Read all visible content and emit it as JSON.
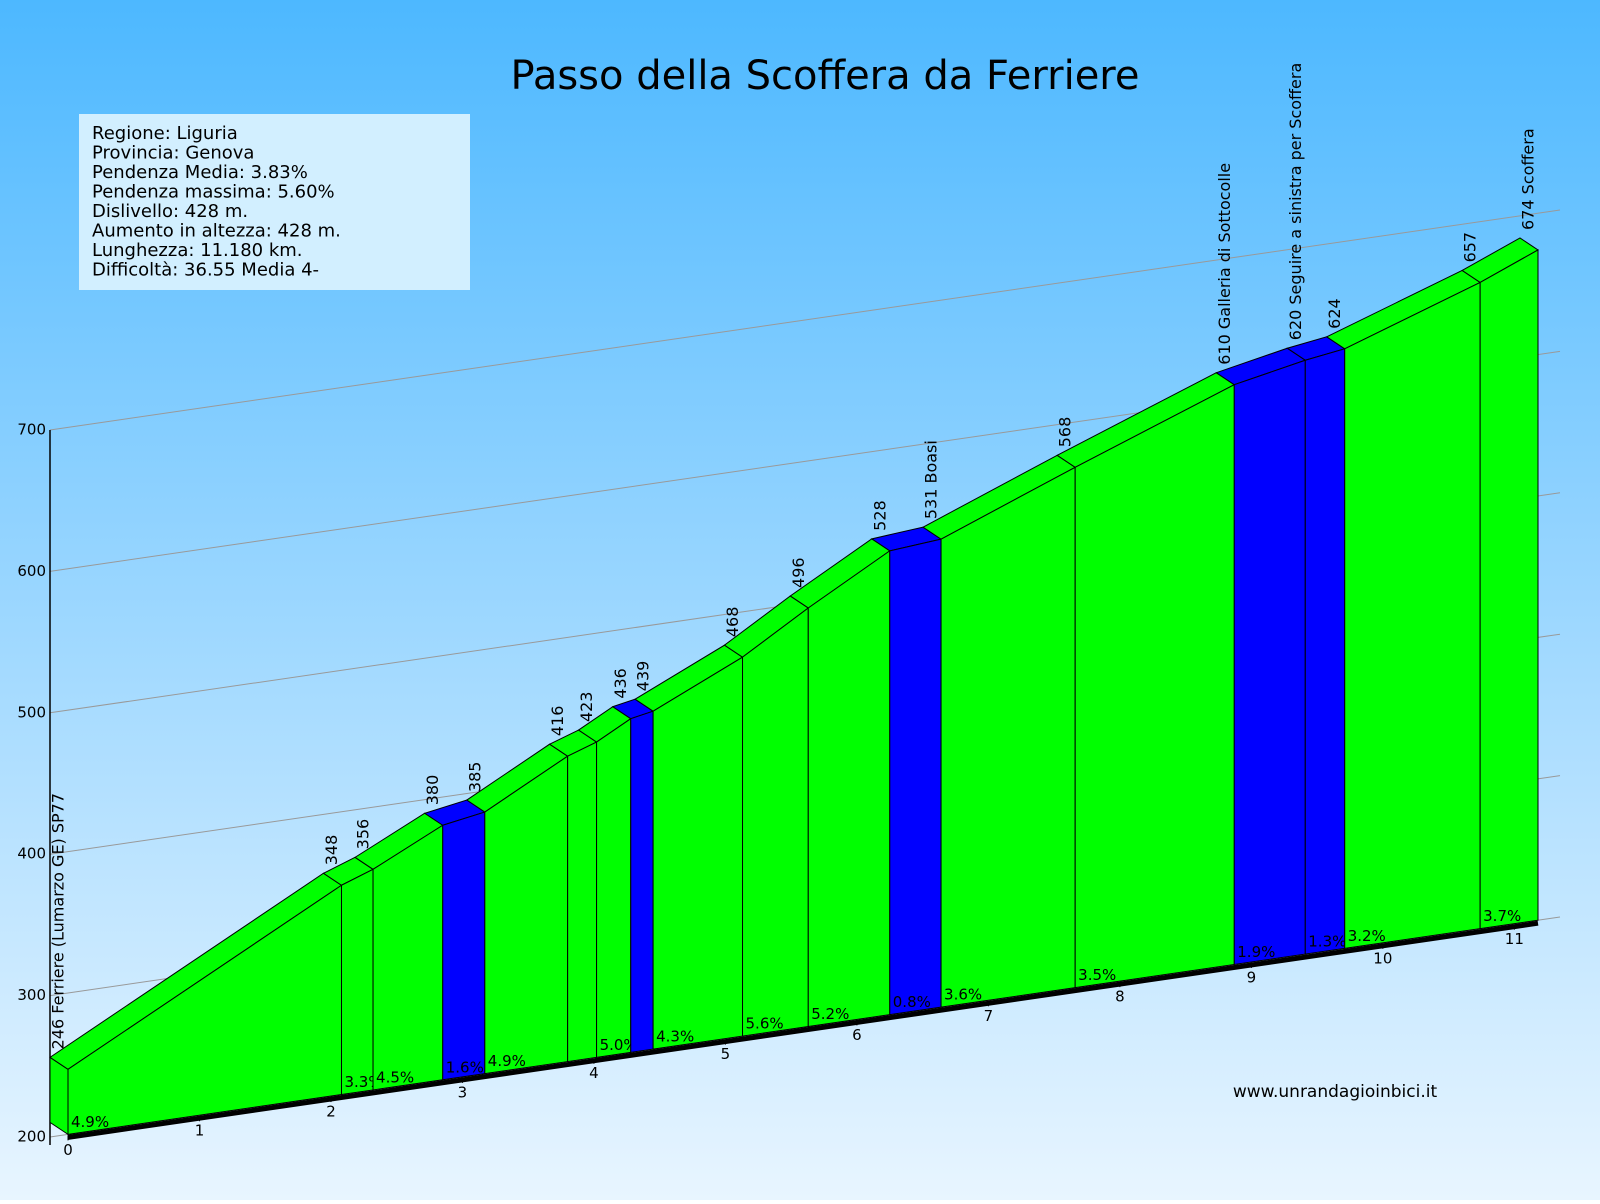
{
  "chart_data": {
    "type": "elevation_profile",
    "title": "Passo della Scoffera da Ferriere",
    "info": [
      "Regione: Liguria",
      "Provincia: Genova",
      "Pendenza Media: 3.83%",
      "Pendenza massima: 5.60%",
      "Dislivello:   428 m.",
      "Aumento in altezza:   428 m.",
      "Lunghezza:  11.180 km.",
      "Difficoltà: 36.55 Media 4-"
    ],
    "watermark": "www.unrandagioinbici.it",
    "km": [
      0,
      2.08,
      2.32,
      2.85,
      3.17,
      3.8,
      4.02,
      4.28,
      4.45,
      5.13,
      5.63,
      6.25,
      6.64,
      7.66,
      8.87,
      9.41,
      9.71,
      10.74,
      11.18
    ],
    "elevations": [
      246,
      348,
      356,
      380,
      385,
      416,
      423,
      436,
      439,
      468,
      496,
      528,
      531,
      568,
      610,
      620,
      624,
      657,
      674
    ],
    "point_labels": [
      "246 Ferriere (Lumarzo GE) SP77",
      "348",
      "356",
      "380",
      "385",
      "416",
      "423",
      "436",
      "439",
      "468",
      "496",
      "528",
      "531 Boasi",
      "568",
      "610 Galleria di Sottocolle",
      "620 Seguire a sinistra per Scoffera",
      "624",
      "657",
      "674 Scoffera"
    ],
    "grades": [
      4.9,
      3.3,
      4.5,
      1.6,
      4.9,
      null,
      5.0,
      null,
      4.3,
      5.6,
      5.2,
      0.8,
      3.6,
      3.5,
      1.9,
      1.3,
      3.2,
      3.7
    ],
    "grade_labels": [
      "4.9%",
      "3.3%",
      "4.5%",
      "1.6%",
      "4.9%",
      null,
      "5.0%",
      null,
      "4.3%",
      "5.6%",
      "5.2%",
      "0.8%",
      "3.6%",
      "3.5%",
      "1.9%",
      "1.3%",
      "3.2%",
      "3.7%"
    ],
    "segment_colors": [
      "#00ff00",
      "#00ff00",
      "#00ff00",
      "#0000ff",
      "#00ff00",
      "#00ff00",
      "#00ff00",
      "#0000ff",
      "#00ff00",
      "#00ff00",
      "#00ff00",
      "#0000ff",
      "#00ff00",
      "#00ff00",
      "#0000ff",
      "#0000ff",
      "#00ff00",
      "#00ff00"
    ],
    "xlim": [
      0,
      11.18
    ],
    "xticks": [
      0,
      1,
      2,
      3,
      4,
      5,
      6,
      7,
      8,
      9,
      10,
      11
    ],
    "ylim": [
      200,
      700
    ],
    "yticks": [
      200,
      300,
      400,
      500,
      600,
      700
    ],
    "grid": true
  }
}
